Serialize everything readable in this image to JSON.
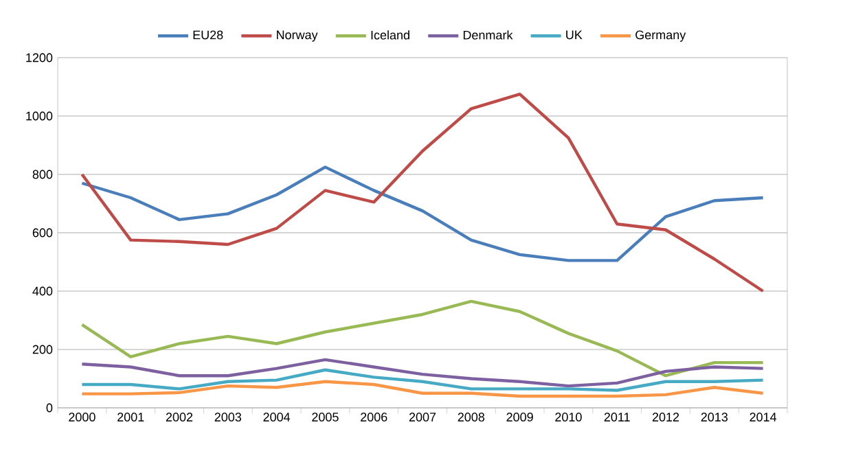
{
  "chart_data": {
    "type": "line",
    "categories": [
      "2000",
      "2001",
      "2002",
      "2003",
      "2004",
      "2005",
      "2006",
      "2007",
      "2008",
      "2009",
      "2010",
      "2011",
      "2012",
      "2013",
      "2014"
    ],
    "series": [
      {
        "name": "EU28",
        "color": "#4a7ebb",
        "values": [
          770,
          720,
          645,
          665,
          730,
          825,
          745,
          675,
          575,
          525,
          505,
          505,
          655,
          710,
          720
        ]
      },
      {
        "name": "Norway",
        "color": "#be4b48",
        "values": [
          800,
          575,
          570,
          560,
          615,
          745,
          705,
          880,
          1025,
          1075,
          925,
          630,
          610,
          510,
          400
        ]
      },
      {
        "name": "Iceland",
        "color": "#98b954",
        "values": [
          285,
          175,
          220,
          245,
          220,
          260,
          290,
          320,
          365,
          330,
          255,
          195,
          110,
          155,
          155
        ]
      },
      {
        "name": "Denmark",
        "color": "#7d60a0",
        "values": [
          150,
          140,
          110,
          110,
          135,
          165,
          140,
          115,
          100,
          90,
          75,
          85,
          125,
          140,
          135
        ]
      },
      {
        "name": "UK",
        "color": "#46aac5",
        "values": [
          80,
          80,
          65,
          90,
          95,
          130,
          105,
          90,
          65,
          65,
          65,
          60,
          90,
          90,
          95
        ]
      },
      {
        "name": "Germany",
        "color": "#f79646",
        "values": [
          48,
          48,
          52,
          75,
          70,
          90,
          80,
          50,
          50,
          40,
          40,
          40,
          45,
          70,
          50
        ]
      }
    ],
    "ylim": [
      0,
      1200
    ],
    "yticks": [
      0,
      200,
      400,
      600,
      800,
      1000,
      1200
    ],
    "grid": "y",
    "legend": "top",
    "marker": "none",
    "line_style": "solid"
  }
}
